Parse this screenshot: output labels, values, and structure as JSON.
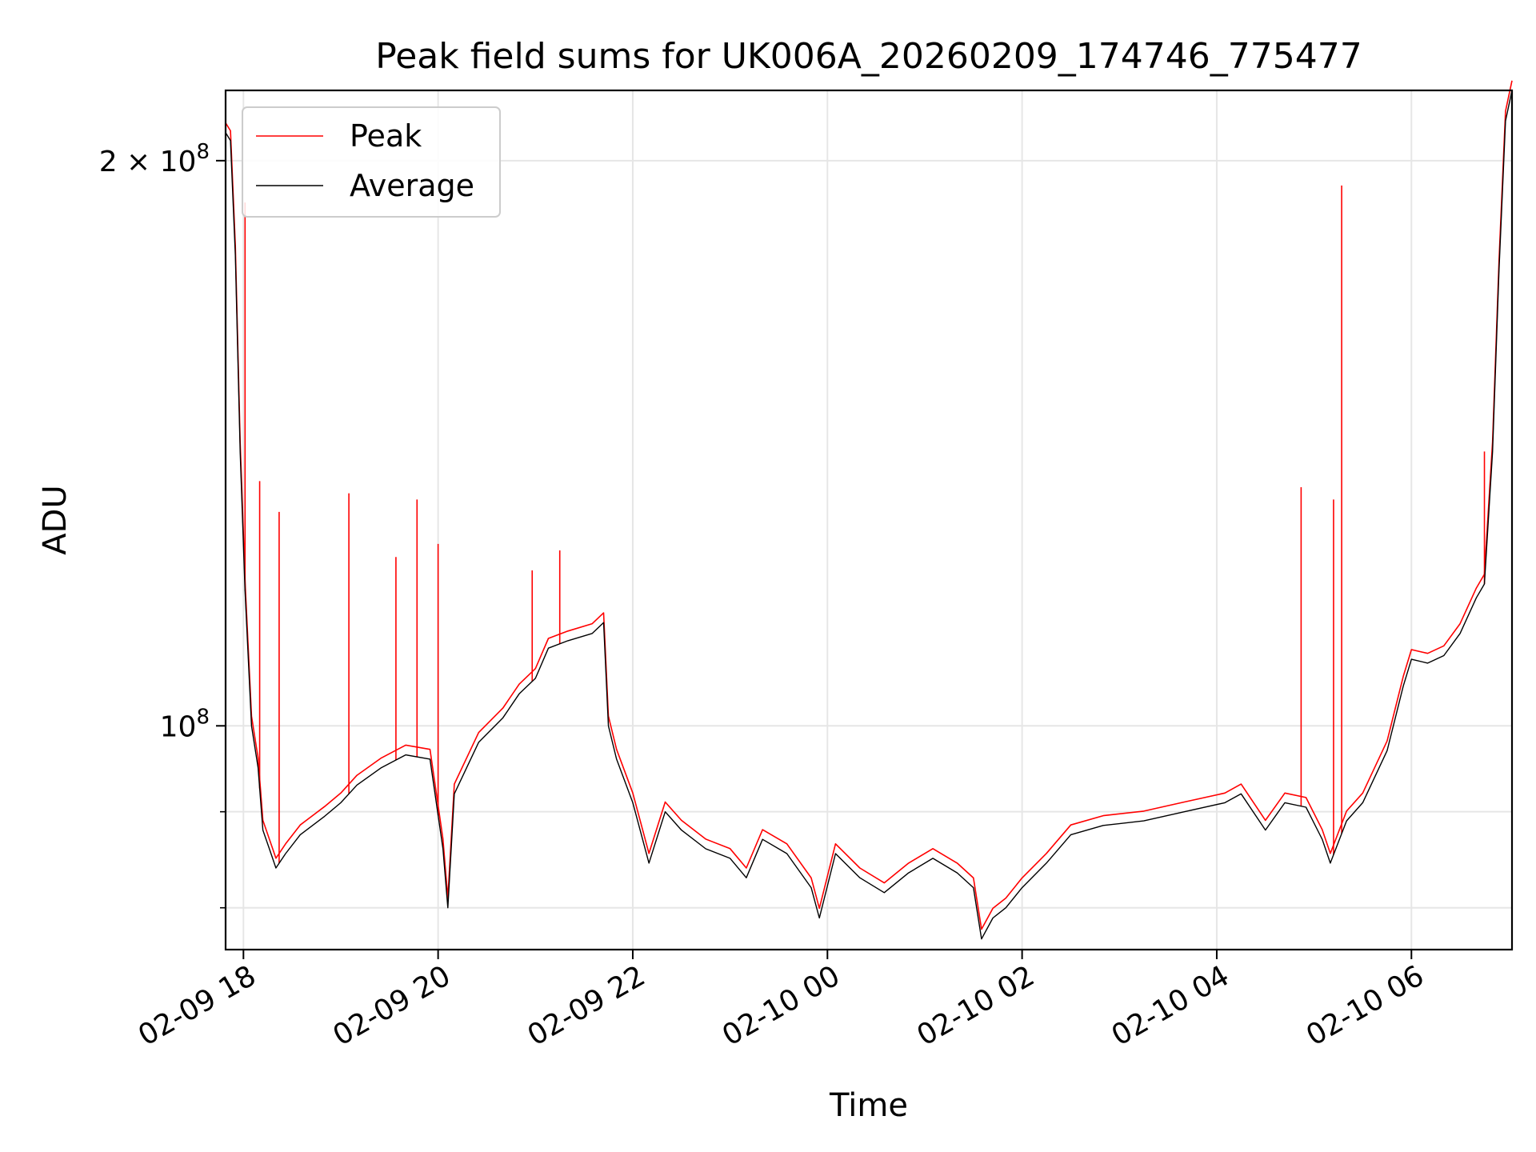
{
  "chart_data": {
    "type": "line",
    "title": "Peak field sums for UK006A_20260209_174746_775477",
    "xlabel": "Time",
    "ylabel": "ADU",
    "yscale": "log",
    "ylim": [
      76000000,
      218000000
    ],
    "xlim": [
      "2026-02-09 17:49",
      "2026-02-10 07:02"
    ],
    "grid": true,
    "legend_position": "top-left",
    "x_ticks": [
      {
        "t": "2026-02-09 18:00",
        "label": "02-09 18"
      },
      {
        "t": "2026-02-09 20:00",
        "label": "02-09 20"
      },
      {
        "t": "2026-02-09 22:00",
        "label": "02-09 22"
      },
      {
        "t": "2026-02-10 00:00",
        "label": "02-10 00"
      },
      {
        "t": "2026-02-10 02:00",
        "label": "02-10 02"
      },
      {
        "t": "2026-02-10 04:00",
        "label": "02-10 04"
      },
      {
        "t": "2026-02-10 06:00",
        "label": "02-10 06"
      }
    ],
    "y_ticks": [
      {
        "value": 200000000,
        "label": "2 × 10^8",
        "mantissa": "2 × 10",
        "exponent": "8"
      },
      {
        "value": 100000000,
        "label": "10^8",
        "mantissa": "10",
        "exponent": "8"
      }
    ],
    "y_minor_ticks": [
      80000000,
      90000000
    ],
    "series": [
      {
        "name": "Peak",
        "color": "#ff0000",
        "spikes": [
          {
            "t": "2026-02-09 18:01",
            "y": 190000000
          },
          {
            "t": "2026-02-09 18:10",
            "y": 135000000
          },
          {
            "t": "2026-02-09 18:22",
            "y": 130000000
          },
          {
            "t": "2026-02-09 19:05",
            "y": 133000000
          },
          {
            "t": "2026-02-09 19:34",
            "y": 123000000
          },
          {
            "t": "2026-02-09 19:47",
            "y": 132000000
          },
          {
            "t": "2026-02-09 20:00",
            "y": 125000000
          },
          {
            "t": "2026-02-09 20:58",
            "y": 121000000
          },
          {
            "t": "2026-02-09 21:15",
            "y": 124000000
          },
          {
            "t": "2026-02-10 04:52",
            "y": 134000000
          },
          {
            "t": "2026-02-10 05:12",
            "y": 132000000
          },
          {
            "t": "2026-02-10 05:17",
            "y": 194000000
          },
          {
            "t": "2026-02-10 06:45",
            "y": 140000000
          }
        ]
      },
      {
        "name": "Average",
        "color": "#000000",
        "points": [
          [
            "2026-02-09 17:49",
            207000000
          ],
          [
            "2026-02-09 17:52",
            205000000
          ],
          [
            "2026-02-09 17:55",
            178000000
          ],
          [
            "2026-02-09 17:58",
            140000000
          ],
          [
            "2026-02-09 18:01",
            118000000
          ],
          [
            "2026-02-09 18:05",
            100000000
          ],
          [
            "2026-02-09 18:09",
            95000000
          ],
          [
            "2026-02-09 18:12",
            88000000
          ],
          [
            "2026-02-09 18:16",
            86000000
          ],
          [
            "2026-02-09 18:20",
            84000000
          ],
          [
            "2026-02-09 18:26",
            85500000
          ],
          [
            "2026-02-09 18:35",
            87500000
          ],
          [
            "2026-02-09 18:50",
            89500000
          ],
          [
            "2026-02-09 19:00",
            91000000
          ],
          [
            "2026-02-09 19:10",
            93000000
          ],
          [
            "2026-02-09 19:25",
            95000000
          ],
          [
            "2026-02-09 19:40",
            96500000
          ],
          [
            "2026-02-09 19:55",
            96000000
          ],
          [
            "2026-02-09 20:03",
            86000000
          ],
          [
            "2026-02-09 20:06",
            80000000
          ],
          [
            "2026-02-09 20:10",
            92000000
          ],
          [
            "2026-02-09 20:25",
            98000000
          ],
          [
            "2026-02-09 20:40",
            101000000
          ],
          [
            "2026-02-09 20:50",
            104000000
          ],
          [
            "2026-02-09 21:00",
            106000000
          ],
          [
            "2026-02-09 21:08",
            110000000
          ],
          [
            "2026-02-09 21:20",
            111000000
          ],
          [
            "2026-02-09 21:35",
            112000000
          ],
          [
            "2026-02-09 21:42",
            113500000
          ],
          [
            "2026-02-09 21:45",
            100000000
          ],
          [
            "2026-02-09 21:50",
            96000000
          ],
          [
            "2026-02-09 22:00",
            91000000
          ],
          [
            "2026-02-09 22:10",
            84500000
          ],
          [
            "2026-02-09 22:20",
            90000000
          ],
          [
            "2026-02-09 22:30",
            88000000
          ],
          [
            "2026-02-09 22:45",
            86000000
          ],
          [
            "2026-02-09 23:00",
            85000000
          ],
          [
            "2026-02-09 23:10",
            83000000
          ],
          [
            "2026-02-09 23:20",
            87000000
          ],
          [
            "2026-02-09 23:35",
            85500000
          ],
          [
            "2026-02-09 23:50",
            82000000
          ],
          [
            "2026-02-09 23:55",
            79000000
          ],
          [
            "2026-02-10 00:05",
            85500000
          ],
          [
            "2026-02-10 00:20",
            83000000
          ],
          [
            "2026-02-10 00:35",
            81500000
          ],
          [
            "2026-02-10 00:50",
            83500000
          ],
          [
            "2026-02-10 01:05",
            85000000
          ],
          [
            "2026-02-10 01:20",
            83500000
          ],
          [
            "2026-02-10 01:30",
            82000000
          ],
          [
            "2026-02-10 01:35",
            77000000
          ],
          [
            "2026-02-10 01:42",
            79000000
          ],
          [
            "2026-02-10 01:50",
            80000000
          ],
          [
            "2026-02-10 02:00",
            82000000
          ],
          [
            "2026-02-10 02:15",
            84500000
          ],
          [
            "2026-02-10 02:30",
            87500000
          ],
          [
            "2026-02-10 02:50",
            88500000
          ],
          [
            "2026-02-10 03:15",
            89000000
          ],
          [
            "2026-02-10 03:40",
            90000000
          ],
          [
            "2026-02-10 04:05",
            91000000
          ],
          [
            "2026-02-10 04:15",
            92000000
          ],
          [
            "2026-02-10 04:30",
            88000000
          ],
          [
            "2026-02-10 04:42",
            91000000
          ],
          [
            "2026-02-10 04:55",
            90500000
          ],
          [
            "2026-02-10 05:05",
            87000000
          ],
          [
            "2026-02-10 05:10",
            84500000
          ],
          [
            "2026-02-10 05:20",
            89000000
          ],
          [
            "2026-02-10 05:30",
            91000000
          ],
          [
            "2026-02-10 05:45",
            97000000
          ],
          [
            "2026-02-10 05:55",
            105000000
          ],
          [
            "2026-02-10 06:00",
            108500000
          ],
          [
            "2026-02-10 06:10",
            108000000
          ],
          [
            "2026-02-10 06:20",
            109000000
          ],
          [
            "2026-02-10 06:30",
            112000000
          ],
          [
            "2026-02-10 06:40",
            117000000
          ],
          [
            "2026-02-10 06:45",
            119000000
          ],
          [
            "2026-02-10 06:50",
            140000000
          ],
          [
            "2026-02-10 06:54",
            175000000
          ],
          [
            "2026-02-10 06:58",
            210000000
          ],
          [
            "2026-02-10 07:02",
            218000000
          ]
        ]
      }
    ]
  }
}
